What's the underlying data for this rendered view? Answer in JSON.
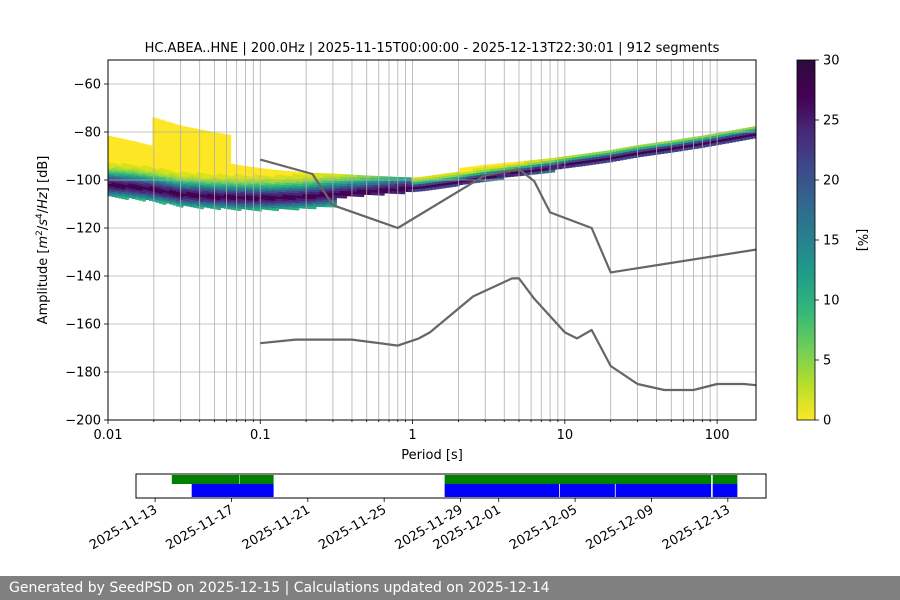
{
  "footer_text": "Generated by SeedPSD on 2025-12-15 | Calculations updated on 2025-12-14",
  "chart_data": [
    {
      "type": "heatmap",
      "title": "HC.ABEA..HNE | 200.0Hz | 2025-11-15T00:00:00 - 2025-12-13T22:30:01 | 912 segments",
      "xlabel": "Period [s]",
      "ylabel": "Amplitude [m²/s⁴/Hz] [dB]",
      "xscale": "log",
      "xlim": [
        0.01,
        180
      ],
      "ylim": [
        -200,
        -50
      ],
      "xticks": [
        0.01,
        0.1,
        1,
        10,
        100
      ],
      "xtick_labels": [
        "0.01",
        "0.1",
        "1",
        "10",
        "100"
      ],
      "yticks": [
        -200,
        -180,
        -160,
        -140,
        -120,
        -100,
        -80,
        -60
      ],
      "ytick_labels": [
        "−200",
        "−180",
        "−160",
        "−140",
        "−120",
        "−100",
        "−80",
        "−60"
      ],
      "grid": true,
      "colorbar": {
        "label": "[%]",
        "range": [
          0,
          30
        ],
        "ticks": [
          0,
          5,
          10,
          15,
          20,
          25,
          30
        ],
        "tick_labels": [
          "0",
          "5",
          "10",
          "15",
          "20",
          "25",
          "30"
        ],
        "colormap": "viridis_r"
      },
      "density_ridge": {
        "description": "mode line of PSD probability density",
        "period": [
          0.01,
          0.015,
          0.02,
          0.03,
          0.05,
          0.08,
          0.12,
          0.2,
          0.3,
          0.5,
          0.8,
          1.2,
          2,
          3,
          5,
          8,
          12,
          20,
          30,
          50,
          80,
          120,
          180
        ],
        "db": [
          -102,
          -103,
          -104,
          -106,
          -107,
          -107.5,
          -107.5,
          -107,
          -106,
          -105,
          -104,
          -103,
          -101,
          -99,
          -97,
          -95,
          -93,
          -91,
          -89,
          -87,
          -85,
          -83,
          -81
        ]
      },
      "series": [
        {
          "name": "",
          "style": "line",
          "color": "#666666",
          "x": [
            0.1,
            0.22,
            0.3,
            0.8,
            3,
            5,
            6.3,
            8,
            15,
            20,
            180
          ],
          "y": [
            -91.5,
            -97.5,
            -110.5,
            -120,
            -98,
            -95.5,
            -100.5,
            -113.5,
            -120,
            -138.5,
            -129
          ]
        },
        {
          "name": "",
          "style": "line",
          "color": "#666666",
          "x": [
            0.1,
            0.17,
            0.4,
            0.8,
            1.1,
            1.3,
            2.5,
            4.5,
            5,
            6.3,
            10,
            12,
            15,
            20,
            30,
            45,
            70,
            100,
            150,
            180
          ],
          "y": [
            -168,
            -166.5,
            -166.5,
            -169,
            -166,
            -163.5,
            -148.5,
            -141,
            -141,
            -149.5,
            -163.5,
            -166,
            -162.5,
            -177.5,
            -185,
            -187.5,
            -187.5,
            -185,
            -185,
            -185.5
          ]
        }
      ]
    },
    {
      "type": "timeline",
      "xlabel": "",
      "x_range": [
        "2025-11-12",
        "2025-12-15"
      ],
      "tick_labels": [
        "2025-11-13",
        "2025-11-17",
        "2025-11-21",
        "2025-11-25",
        "2025-11-29",
        "2025-12-01",
        "2025-12-05",
        "2025-12-09",
        "2025-12-13"
      ],
      "tracks": [
        {
          "color": "#008000",
          "spans": [
            [
              "2025-11-13T21:00",
              "2025-11-17T10:00"
            ],
            [
              "2025-11-17T10:40",
              "2025-11-19T05:00"
            ],
            [
              "2025-11-28T04:00",
              "2025-12-12T03:00"
            ],
            [
              "2025-12-12T05:00",
              "2025-12-13T12:00"
            ]
          ]
        },
        {
          "color": "#0000ff",
          "spans": [
            [
              "2025-11-14T22:00",
              "2025-11-19T05:00"
            ],
            [
              "2025-11-28T04:00",
              "2025-12-04T04:00"
            ],
            [
              "2025-12-04T05:00",
              "2025-12-07T02:00"
            ],
            [
              "2025-12-07T03:00",
              "2025-12-12T03:00"
            ],
            [
              "2025-12-12T05:00",
              "2025-12-13T12:00"
            ]
          ]
        }
      ]
    }
  ]
}
